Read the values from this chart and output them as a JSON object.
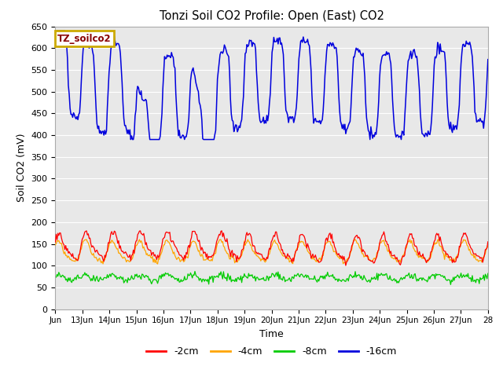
{
  "title": "Tonzi Soil CO2 Profile: Open (East) CO2",
  "ylabel": "Soil CO2 (mV)",
  "xlabel": "Time",
  "ylim": [
    0,
    650
  ],
  "yticks": [
    0,
    50,
    100,
    150,
    200,
    250,
    300,
    350,
    400,
    450,
    500,
    550,
    600,
    650
  ],
  "xtick_labels": [
    "Jun",
    "13Jun",
    "14Jun",
    "15Jun",
    "16Jun",
    "17Jun",
    "18Jun",
    "19Jun",
    "20Jun",
    "21Jun",
    "22Jun",
    "23Jun",
    "24Jun",
    "25Jun",
    "26Jun",
    "27Jun",
    "28"
  ],
  "legend_label_box": "TZ_soilco2",
  "legend_box_facecolor": "#ffffff",
  "legend_box_edgecolor": "#ccaa00",
  "legend_box_text_color": "#880000",
  "series": [
    {
      "label": "-2cm",
      "color": "#ff0000"
    },
    {
      "label": "-4cm",
      "color": "#ffa500"
    },
    {
      "label": "-8cm",
      "color": "#00cc00"
    },
    {
      "label": "-16cm",
      "color": "#0000dd"
    }
  ],
  "plot_bg_color": "#e8e8e8",
  "fig_bg_color": "#ffffff",
  "grid_color": "#ffffff",
  "n_points": 500
}
